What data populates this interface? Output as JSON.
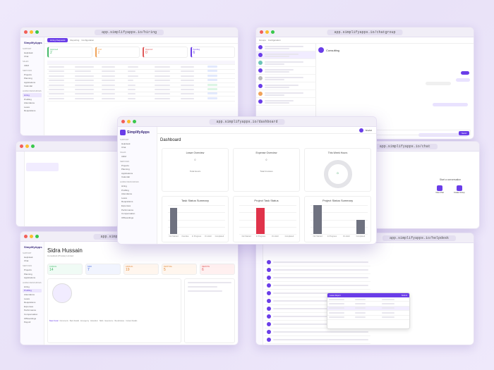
{
  "windows": {
    "hiring": {
      "url": "app.simplifyapps.io/hiring",
      "tabs": [
        "Hiring Requests",
        "Reporting",
        "Configuration"
      ],
      "status": [
        "Approved",
        "Draft",
        "Rejected",
        "Pending"
      ],
      "counts": [
        "2",
        "2",
        "0",
        "6"
      ]
    },
    "chat_group": {
      "url": "app.simplifyapps.io/chatgroup",
      "tabs": [
        "Groups",
        "Configuration"
      ],
      "group_name": "Consulting",
      "send": "Send"
    },
    "dashboard": {
      "url": "app.simplifyapps.io/dashboard",
      "page_title": "Dashboard",
      "user": "Shahid",
      "leave_title": "Leave Overview",
      "expense_title": "Expense Overview",
      "week_title": "This Week Hours",
      "leave_value": "0",
      "expense_value": "0",
      "week_value": "0",
      "total_hours": "Total Hours",
      "total_invoices": "Total Invoices"
    },
    "chat": {
      "url": "app.simplifyapps.io/chat",
      "empty_title": "Start a conversation",
      "new_chat": "New Chat",
      "new_group": "Create Group"
    },
    "profile": {
      "url": "app.simplifyapps.io/profile",
      "name": "Sidra Hussain",
      "role": "Consultant (Private) Limited",
      "stats": [
        "14",
        "7",
        "19",
        "5",
        "6"
      ],
      "stat_labels": [
        "CASUAL",
        "SICK",
        "ANNUAL",
        "FESTIVAL",
        "REMOTE"
      ],
      "tabs": [
        "Basic Detail",
        "Documents",
        "Bank Details",
        "Emergency",
        "Education",
        "Skills",
        "Experience",
        "Beneficiaries",
        "Contact Details"
      ]
    },
    "helpdesk": {
      "url": "app.simplifyapps.io/helpdesk",
      "modal_title": "Leave Report",
      "modal_btn": "Submit"
    }
  },
  "sidebar": {
    "brand": "SimplifyApps",
    "sections": [
      {
        "title": "Support",
        "items": [
          "Helpdesk",
          "Chat"
        ]
      },
      {
        "title": "Sales",
        "items": [
          "CRM"
        ]
      },
      {
        "title": "Services",
        "items": [
          "Projects",
          "Planning",
          "Applications",
          "Calendar"
        ]
      },
      {
        "title": "Human Resources",
        "items": [
          "Hiring",
          "Profiling",
          "Attendance",
          "Leave",
          "Requisitions",
          "Expenses",
          "Performance",
          "Compensation",
          "Offboardings",
          "Payroll"
        ]
      }
    ]
  },
  "chart_data": [
    {
      "type": "bar",
      "title": "Task Status Summary",
      "categories": [
        "Not Started",
        "Overdue",
        "In Progress",
        "On Hold",
        "Completed"
      ],
      "values": [
        9,
        0,
        0,
        0,
        0
      ],
      "ylim": [
        0,
        10
      ],
      "colors": [
        "#6f7280"
      ]
    },
    {
      "type": "bar",
      "title": "Project Task Status",
      "categories": [
        "Not Started",
        "In Progress",
        "On Hold",
        "Completed"
      ],
      "values": [
        0,
        9,
        0,
        0
      ],
      "ylim": [
        0,
        10
      ],
      "colors": [
        "#e0334a"
      ]
    },
    {
      "type": "bar",
      "title": "Project Status Summary",
      "categories": [
        "Not Started",
        "In Progress",
        "On Hold",
        "Completed"
      ],
      "values": [
        10,
        0,
        0,
        5
      ],
      "ylim": [
        0,
        10
      ],
      "colors": [
        "#6f7280"
      ]
    }
  ]
}
